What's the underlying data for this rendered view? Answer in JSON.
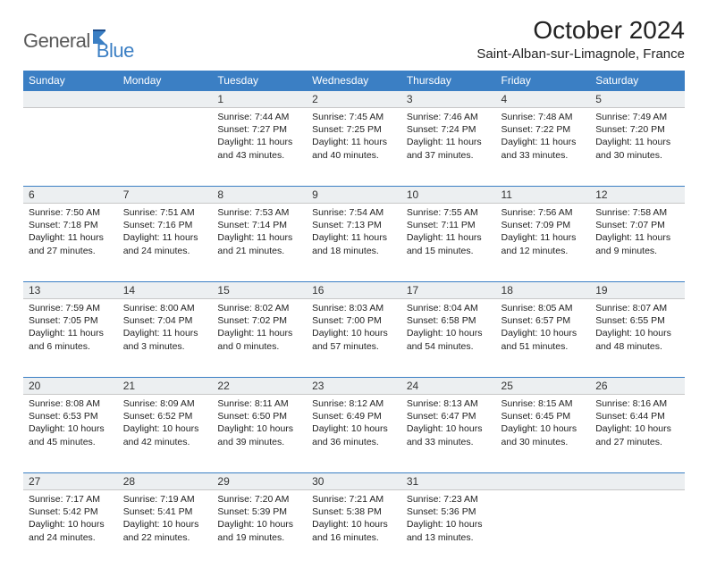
{
  "logo": {
    "general": "General",
    "blue": "Blue"
  },
  "title": "October 2024",
  "location": "Saint-Alban-sur-Limagnole, France",
  "colors": {
    "header_bg": "#3b7fc4",
    "header_text": "#ffffff",
    "daynum_bg": "#eceff1",
    "border_top": "#3b7fc4",
    "text": "#222222"
  },
  "weekdays": [
    "Sunday",
    "Monday",
    "Tuesday",
    "Wednesday",
    "Thursday",
    "Friday",
    "Saturday"
  ],
  "weeks": [
    [
      null,
      null,
      {
        "n": "1",
        "sr": "7:44 AM",
        "ss": "7:27 PM",
        "dl": "11 hours and 43 minutes."
      },
      {
        "n": "2",
        "sr": "7:45 AM",
        "ss": "7:25 PM",
        "dl": "11 hours and 40 minutes."
      },
      {
        "n": "3",
        "sr": "7:46 AM",
        "ss": "7:24 PM",
        "dl": "11 hours and 37 minutes."
      },
      {
        "n": "4",
        "sr": "7:48 AM",
        "ss": "7:22 PM",
        "dl": "11 hours and 33 minutes."
      },
      {
        "n": "5",
        "sr": "7:49 AM",
        "ss": "7:20 PM",
        "dl": "11 hours and 30 minutes."
      }
    ],
    [
      {
        "n": "6",
        "sr": "7:50 AM",
        "ss": "7:18 PM",
        "dl": "11 hours and 27 minutes."
      },
      {
        "n": "7",
        "sr": "7:51 AM",
        "ss": "7:16 PM",
        "dl": "11 hours and 24 minutes."
      },
      {
        "n": "8",
        "sr": "7:53 AM",
        "ss": "7:14 PM",
        "dl": "11 hours and 21 minutes."
      },
      {
        "n": "9",
        "sr": "7:54 AM",
        "ss": "7:13 PM",
        "dl": "11 hours and 18 minutes."
      },
      {
        "n": "10",
        "sr": "7:55 AM",
        "ss": "7:11 PM",
        "dl": "11 hours and 15 minutes."
      },
      {
        "n": "11",
        "sr": "7:56 AM",
        "ss": "7:09 PM",
        "dl": "11 hours and 12 minutes."
      },
      {
        "n": "12",
        "sr": "7:58 AM",
        "ss": "7:07 PM",
        "dl": "11 hours and 9 minutes."
      }
    ],
    [
      {
        "n": "13",
        "sr": "7:59 AM",
        "ss": "7:05 PM",
        "dl": "11 hours and 6 minutes."
      },
      {
        "n": "14",
        "sr": "8:00 AM",
        "ss": "7:04 PM",
        "dl": "11 hours and 3 minutes."
      },
      {
        "n": "15",
        "sr": "8:02 AM",
        "ss": "7:02 PM",
        "dl": "11 hours and 0 minutes."
      },
      {
        "n": "16",
        "sr": "8:03 AM",
        "ss": "7:00 PM",
        "dl": "10 hours and 57 minutes."
      },
      {
        "n": "17",
        "sr": "8:04 AM",
        "ss": "6:58 PM",
        "dl": "10 hours and 54 minutes."
      },
      {
        "n": "18",
        "sr": "8:05 AM",
        "ss": "6:57 PM",
        "dl": "10 hours and 51 minutes."
      },
      {
        "n": "19",
        "sr": "8:07 AM",
        "ss": "6:55 PM",
        "dl": "10 hours and 48 minutes."
      }
    ],
    [
      {
        "n": "20",
        "sr": "8:08 AM",
        "ss": "6:53 PM",
        "dl": "10 hours and 45 minutes."
      },
      {
        "n": "21",
        "sr": "8:09 AM",
        "ss": "6:52 PM",
        "dl": "10 hours and 42 minutes."
      },
      {
        "n": "22",
        "sr": "8:11 AM",
        "ss": "6:50 PM",
        "dl": "10 hours and 39 minutes."
      },
      {
        "n": "23",
        "sr": "8:12 AM",
        "ss": "6:49 PM",
        "dl": "10 hours and 36 minutes."
      },
      {
        "n": "24",
        "sr": "8:13 AM",
        "ss": "6:47 PM",
        "dl": "10 hours and 33 minutes."
      },
      {
        "n": "25",
        "sr": "8:15 AM",
        "ss": "6:45 PM",
        "dl": "10 hours and 30 minutes."
      },
      {
        "n": "26",
        "sr": "8:16 AM",
        "ss": "6:44 PM",
        "dl": "10 hours and 27 minutes."
      }
    ],
    [
      {
        "n": "27",
        "sr": "7:17 AM",
        "ss": "5:42 PM",
        "dl": "10 hours and 24 minutes."
      },
      {
        "n": "28",
        "sr": "7:19 AM",
        "ss": "5:41 PM",
        "dl": "10 hours and 22 minutes."
      },
      {
        "n": "29",
        "sr": "7:20 AM",
        "ss": "5:39 PM",
        "dl": "10 hours and 19 minutes."
      },
      {
        "n": "30",
        "sr": "7:21 AM",
        "ss": "5:38 PM",
        "dl": "10 hours and 16 minutes."
      },
      {
        "n": "31",
        "sr": "7:23 AM",
        "ss": "5:36 PM",
        "dl": "10 hours and 13 minutes."
      },
      null,
      null
    ]
  ],
  "labels": {
    "sunrise": "Sunrise:",
    "sunset": "Sunset:",
    "daylight": "Daylight:"
  }
}
